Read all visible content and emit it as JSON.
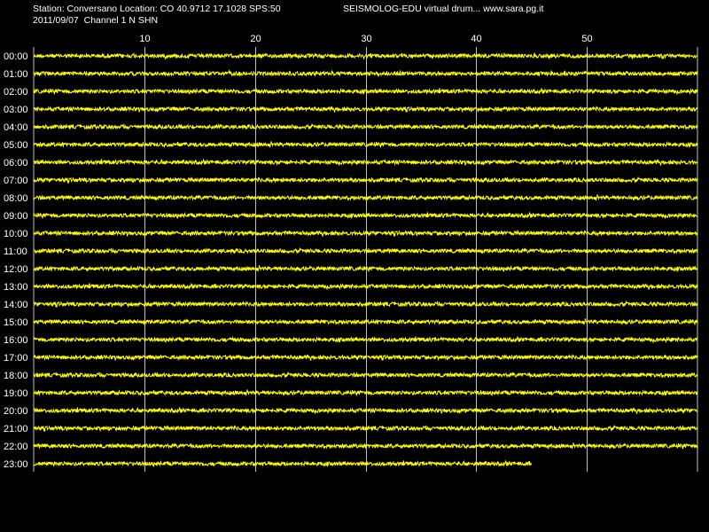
{
  "header": {
    "station_line": "Station: Conversano Location: CO 40.9712 17.1028 SPS:50",
    "date_line": "2011/09/07  Channel 1 N SHN",
    "app_line": "SEISMOLOG-EDU virtual drum... www.sara.pg.it"
  },
  "colors": {
    "background": "#000000",
    "trace": "#ffff00",
    "grid": "#c0c0c0",
    "text": "#ffffff"
  },
  "chart_data": {
    "type": "line",
    "x_ticks": [
      "10",
      "20",
      "30",
      "40",
      "50"
    ],
    "x_tick_values": [
      10,
      20,
      30,
      40,
      50
    ],
    "xlim": [
      0,
      60
    ],
    "row_labels": [
      "00:00",
      "01:00",
      "02:00",
      "03:00",
      "04:00",
      "05:00",
      "06:00",
      "07:00",
      "08:00",
      "09:00",
      "10:00",
      "11:00",
      "12:00",
      "13:00",
      "14:00",
      "15:00",
      "16:00",
      "17:00",
      "18:00",
      "19:00",
      "20:00",
      "21:00",
      "22:00",
      "23:00"
    ],
    "row_extent_minutes": [
      60,
      60,
      60,
      60,
      60,
      60,
      60,
      60,
      60,
      60,
      60,
      60,
      60,
      60,
      60,
      60,
      60,
      60,
      60,
      60,
      60,
      60,
      60,
      45
    ],
    "grid": true
  }
}
